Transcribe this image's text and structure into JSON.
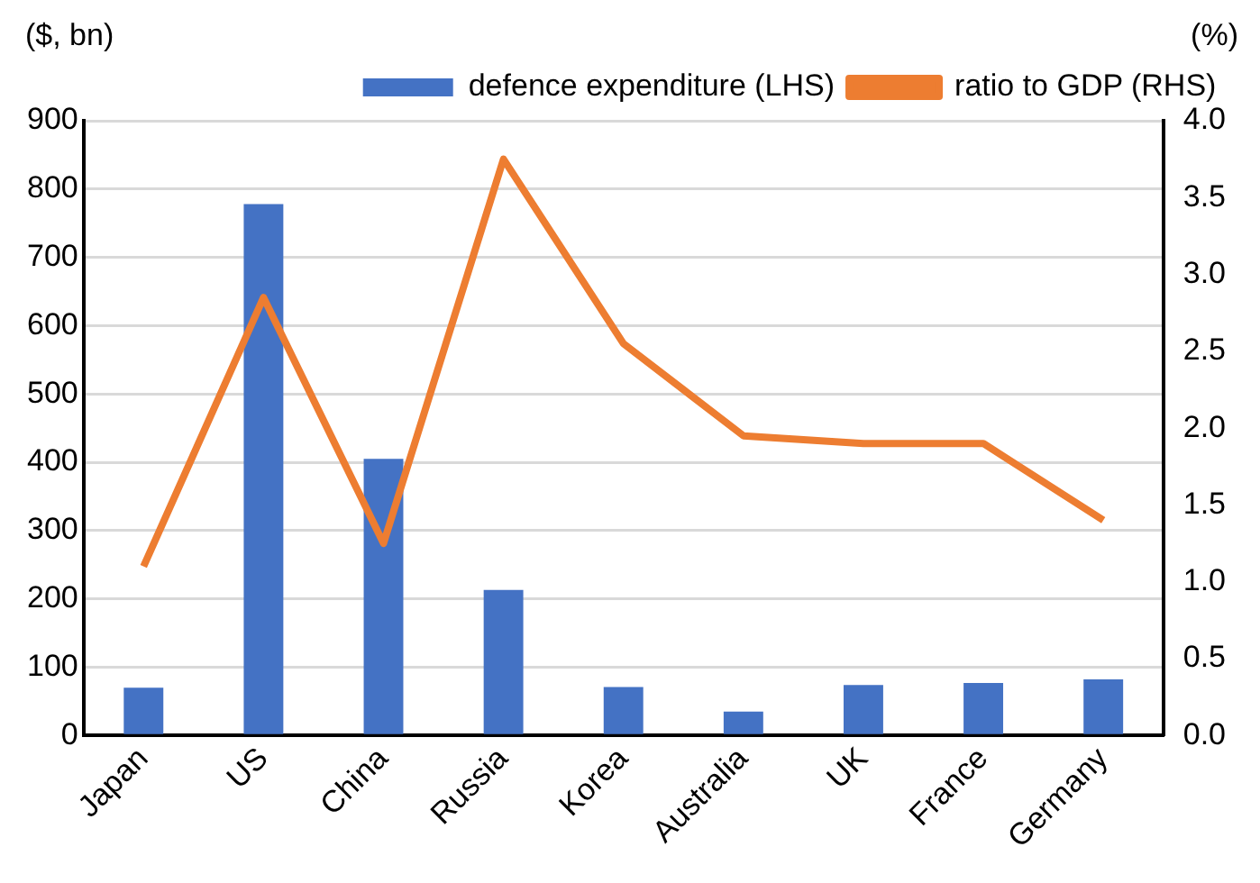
{
  "chart_data": {
    "type": "bar",
    "categories": [
      "Japan",
      "US",
      "China",
      "Russia",
      "Korea",
      "Australia",
      "UK",
      "France",
      "Germany"
    ],
    "ylabel": "($, bn)",
    "y2label": "(%)",
    "series": [
      {
        "name": "defence expenditure (LHS)",
        "color": "#4472c4",
        "values": [
          70,
          778,
          405,
          213,
          71,
          35,
          74,
          77,
          82
        ]
      },
      {
        "name": "ratio to GDP (RHS)",
        "type": "line",
        "axis": "y2",
        "color": "#ed7d31",
        "values": [
          1.1,
          2.85,
          1.25,
          3.75,
          2.55,
          1.95,
          1.9,
          1.9,
          1.4
        ]
      }
    ],
    "ylim": [
      0,
      900
    ],
    "yticks": [
      0,
      100,
      200,
      300,
      400,
      500,
      600,
      700,
      800,
      900
    ],
    "y2lim": [
      0,
      4
    ],
    "y2ticks": [
      {
        "value": 0,
        "label": "0.0"
      },
      {
        "value": 0.5,
        "label": "0.5"
      },
      {
        "value": 1,
        "label": "1.0"
      },
      {
        "value": 1.5,
        "label": "1.5"
      },
      {
        "value": 2,
        "label": "2.0"
      },
      {
        "value": 2.5,
        "label": "2.5"
      },
      {
        "value": 3,
        "label": "3.0"
      },
      {
        "value": 3.5,
        "label": "3.5"
      },
      {
        "value": 4,
        "label": "4.0"
      }
    ],
    "grid": "y",
    "legend": "top right",
    "marker": "none",
    "line_style": "solid"
  }
}
